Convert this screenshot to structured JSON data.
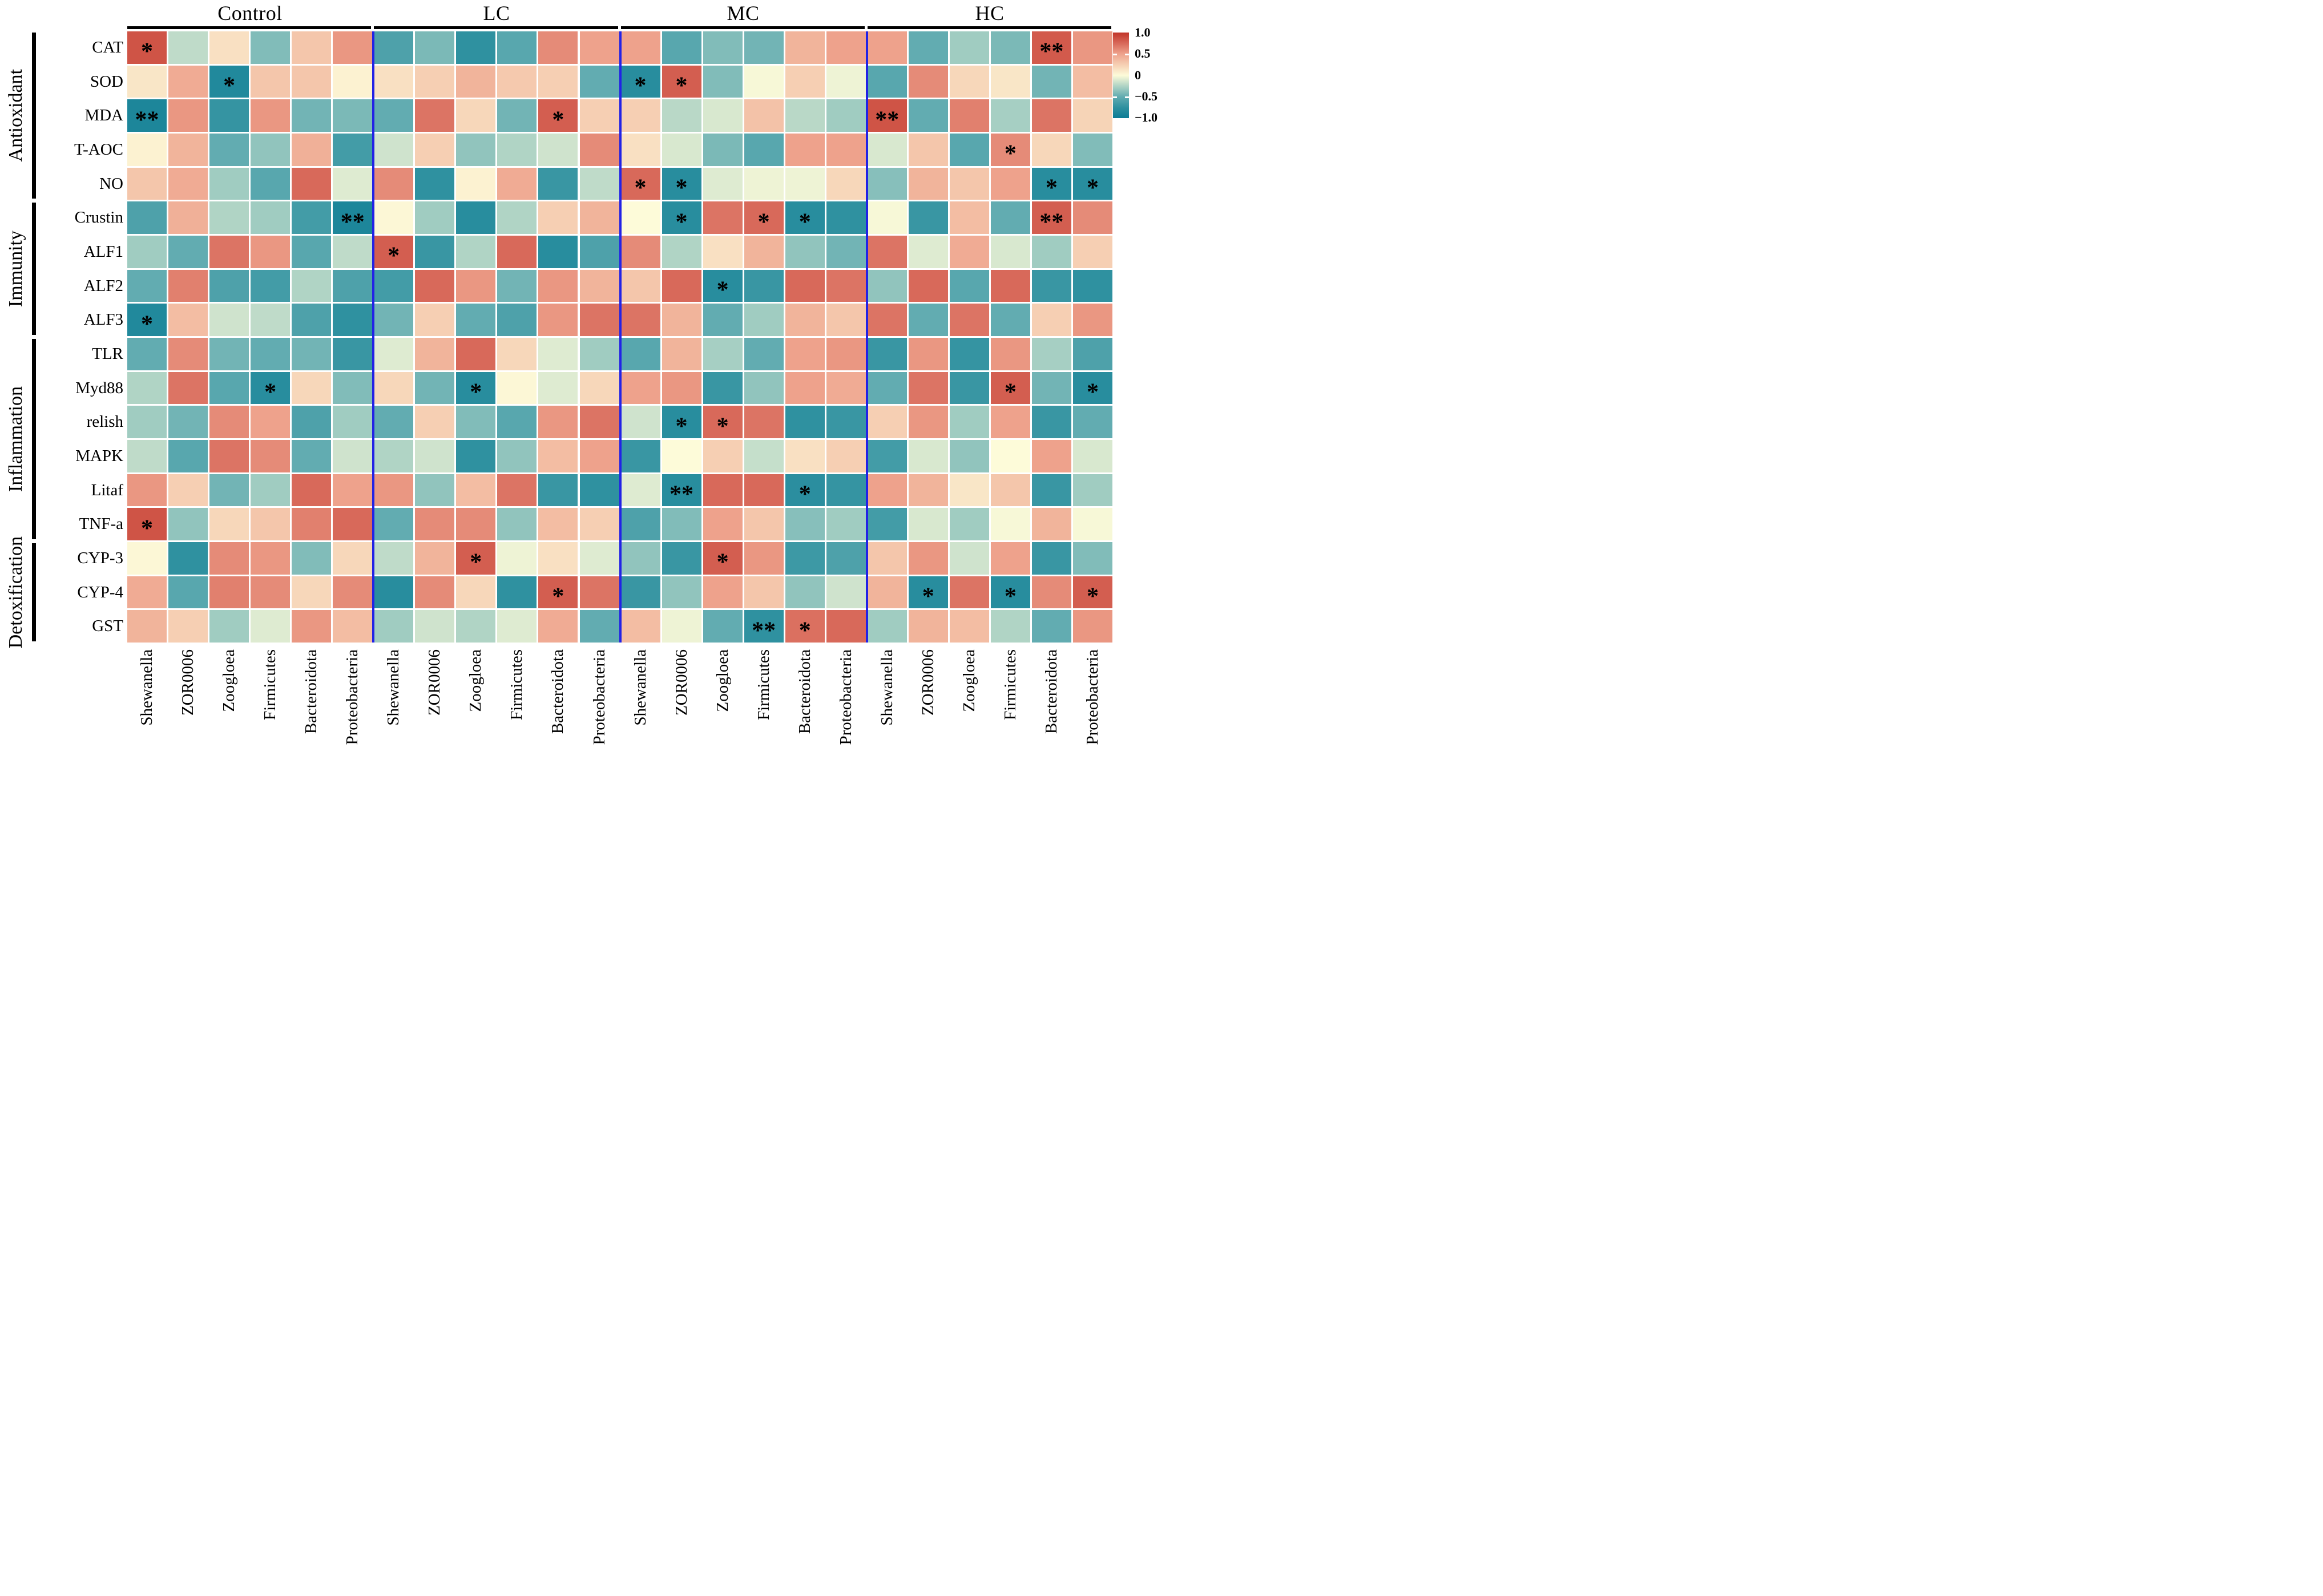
{
  "chart_data": {
    "type": "heatmap",
    "description": "Correlation heatmap between gut microbiota taxa and shrimp physiological gene/enzyme indices across four dietary groups",
    "groups": [
      "Control",
      "LC",
      "MC",
      "HC"
    ],
    "columns": [
      "Shewanella",
      "ZOR0006",
      "Zoogloea",
      "Firmicutes",
      "Bacteroidota",
      "Proteobacteria"
    ],
    "rows": [
      "CAT",
      "SOD",
      "MDA",
      "T-AOC",
      "NO",
      "Crustin",
      "ALF1",
      "ALF2",
      "ALF3",
      "TLR",
      "Myd88",
      "relish",
      "MAPK",
      "Litaf",
      "TNF-a",
      "CYP-3",
      "CYP-4",
      "GST"
    ],
    "row_categories": [
      {
        "label": "Antioxidant",
        "rows": [
          "CAT",
          "SOD",
          "MDA",
          "T-AOC",
          "NO"
        ]
      },
      {
        "label": "Immunity",
        "rows": [
          "Crustin",
          "ALF1",
          "ALF2",
          "ALF3"
        ]
      },
      {
        "label": "Inflammation",
        "rows": [
          "TLR",
          "Myd88",
          "relish",
          "MAPK",
          "Litaf",
          "TNF-a"
        ]
      },
      {
        "label": "Detoxification",
        "rows": [
          "CYP-3",
          "CYP-4",
          "GST"
        ]
      }
    ],
    "values": {
      "Control": [
        [
          0.85,
          -0.2,
          0.15,
          -0.4,
          0.3,
          0.55
        ],
        [
          0.12,
          0.45,
          -0.85,
          0.3,
          0.3,
          0.05
        ],
        [
          -0.88,
          0.55,
          -0.72,
          0.55,
          -0.45,
          -0.42
        ],
        [
          0.05,
          0.4,
          -0.5,
          -0.35,
          0.42,
          -0.65
        ],
        [
          0.3,
          0.45,
          -0.3,
          -0.55,
          0.75,
          -0.1
        ],
        [
          -0.6,
          0.42,
          -0.25,
          -0.3,
          -0.65,
          -0.88
        ],
        [
          -0.3,
          -0.5,
          0.7,
          0.55,
          -0.55,
          -0.2
        ],
        [
          -0.5,
          0.65,
          -0.6,
          -0.65,
          -0.25,
          -0.6
        ],
        [
          -0.85,
          0.35,
          -0.15,
          -0.2,
          -0.6,
          -0.75
        ],
        [
          -0.5,
          0.6,
          -0.45,
          -0.5,
          -0.45,
          -0.7
        ],
        [
          -0.25,
          0.7,
          -0.55,
          -0.8,
          0.2,
          -0.4
        ],
        [
          -0.3,
          -0.45,
          0.6,
          0.5,
          -0.6,
          -0.3
        ],
        [
          -0.2,
          -0.55,
          0.7,
          0.6,
          -0.5,
          -0.15
        ],
        [
          0.55,
          0.25,
          -0.45,
          -0.3,
          0.75,
          0.5
        ],
        [
          0.85,
          -0.35,
          0.2,
          0.3,
          0.65,
          0.75
        ],
        [
          0.02,
          -0.75,
          0.6,
          0.55,
          -0.4,
          0.2
        ],
        [
          0.45,
          -0.55,
          0.65,
          0.6,
          0.2,
          0.6
        ],
        [
          0.4,
          0.25,
          -0.3,
          -0.1,
          0.55,
          0.35
        ]
      ],
      "LC": [
        [
          -0.6,
          -0.42,
          -0.75,
          -0.55,
          0.6,
          0.5
        ],
        [
          0.15,
          0.25,
          0.4,
          0.28,
          0.25,
          -0.5
        ],
        [
          -0.5,
          0.7,
          0.2,
          -0.45,
          0.8,
          0.25
        ],
        [
          -0.15,
          0.25,
          -0.35,
          -0.25,
          -0.15,
          0.6
        ],
        [
          0.6,
          -0.75,
          0.05,
          0.45,
          -0.7,
          -0.2
        ],
        [
          0.02,
          -0.3,
          -0.8,
          -0.25,
          0.25,
          0.4
        ],
        [
          0.8,
          -0.7,
          -0.25,
          0.75,
          -0.8,
          -0.6
        ],
        [
          -0.65,
          0.75,
          0.55,
          -0.45,
          0.55,
          0.4
        ],
        [
          -0.45,
          0.25,
          -0.5,
          -0.6,
          0.55,
          0.7
        ],
        [
          -0.1,
          0.4,
          0.75,
          0.2,
          -0.1,
          -0.3
        ],
        [
          0.2,
          -0.45,
          -0.8,
          0.02,
          -0.1,
          0.2
        ],
        [
          -0.5,
          0.25,
          -0.4,
          -0.55,
          0.55,
          0.7
        ],
        [
          -0.25,
          -0.15,
          -0.75,
          -0.35,
          0.35,
          0.5
        ],
        [
          0.55,
          -0.35,
          0.35,
          0.7,
          -0.7,
          -0.75
        ],
        [
          -0.5,
          0.6,
          0.6,
          -0.35,
          0.35,
          0.25
        ],
        [
          -0.2,
          0.4,
          0.8,
          -0.05,
          0.15,
          -0.1
        ],
        [
          -0.8,
          0.6,
          0.2,
          -0.75,
          0.8,
          0.7
        ],
        [
          -0.3,
          -0.15,
          -0.25,
          -0.1,
          0.45,
          -0.5
        ]
      ],
      "MC": [
        [
          0.5,
          -0.55,
          -0.4,
          -0.45,
          0.4,
          0.5
        ],
        [
          -0.8,
          0.8,
          -0.4,
          -0.02,
          0.25,
          -0.05
        ],
        [
          0.25,
          -0.22,
          -0.12,
          0.32,
          -0.22,
          -0.3
        ],
        [
          0.15,
          -0.12,
          -0.42,
          -0.55,
          0.5,
          0.5
        ],
        [
          0.75,
          -0.8,
          -0.1,
          -0.05,
          -0.05,
          0.2
        ],
        [
          0.0,
          -0.8,
          0.7,
          0.75,
          -0.8,
          -0.75
        ],
        [
          0.6,
          -0.25,
          0.15,
          0.4,
          -0.35,
          -0.45
        ],
        [
          0.3,
          0.75,
          -0.8,
          -0.7,
          0.75,
          0.7
        ],
        [
          0.7,
          0.4,
          -0.5,
          -0.3,
          0.4,
          0.3
        ],
        [
          -0.55,
          0.4,
          -0.28,
          -0.5,
          0.5,
          0.55
        ],
        [
          0.5,
          0.55,
          -0.7,
          -0.35,
          0.5,
          0.45
        ],
        [
          -0.15,
          -0.8,
          0.75,
          0.7,
          -0.75,
          -0.7
        ],
        [
          -0.7,
          0.0,
          0.25,
          -0.18,
          0.15,
          0.25
        ],
        [
          -0.1,
          -0.8,
          0.75,
          0.75,
          -0.78,
          -0.72
        ],
        [
          -0.6,
          -0.4,
          0.5,
          0.3,
          -0.38,
          -0.3
        ],
        [
          -0.35,
          -0.7,
          0.8,
          0.55,
          -0.68,
          -0.6
        ],
        [
          -0.7,
          -0.35,
          0.5,
          0.3,
          -0.35,
          -0.15
        ],
        [
          0.35,
          -0.05,
          -0.5,
          -0.75,
          0.72,
          0.75
        ]
      ],
      "HC": [
        [
          0.5,
          -0.5,
          -0.3,
          -0.42,
          0.82,
          0.55
        ],
        [
          -0.55,
          0.6,
          0.2,
          0.12,
          -0.45,
          0.35
        ],
        [
          0.85,
          -0.5,
          0.65,
          -0.28,
          0.7,
          0.22
        ],
        [
          -0.12,
          0.3,
          -0.55,
          0.6,
          0.2,
          -0.4
        ],
        [
          -0.38,
          0.4,
          0.3,
          0.5,
          -0.8,
          -0.8
        ],
        [
          -0.02,
          -0.7,
          0.35,
          -0.5,
          0.8,
          0.6
        ],
        [
          0.7,
          -0.1,
          0.45,
          -0.12,
          -0.3,
          0.25
        ],
        [
          -0.35,
          0.75,
          -0.55,
          0.75,
          -0.7,
          -0.75
        ],
        [
          0.7,
          -0.5,
          0.7,
          -0.5,
          0.25,
          0.55
        ],
        [
          -0.7,
          0.55,
          -0.72,
          0.55,
          -0.28,
          -0.6
        ],
        [
          -0.5,
          0.7,
          -0.7,
          0.8,
          -0.45,
          -0.8
        ],
        [
          0.25,
          0.55,
          -0.3,
          0.5,
          -0.7,
          -0.5
        ],
        [
          -0.65,
          -0.12,
          -0.35,
          0.0,
          0.5,
          -0.12
        ],
        [
          0.5,
          0.4,
          0.12,
          0.3,
          -0.7,
          -0.3
        ],
        [
          -0.65,
          -0.12,
          -0.3,
          -0.02,
          0.4,
          -0.02
        ],
        [
          0.3,
          0.55,
          -0.15,
          0.5,
          -0.7,
          -0.4
        ],
        [
          0.4,
          -0.8,
          0.7,
          -0.8,
          0.6,
          0.8
        ],
        [
          -0.3,
          0.4,
          0.35,
          -0.25,
          -0.5,
          0.55
        ]
      ]
    },
    "stars": {
      "Control": [
        [
          "*",
          "",
          "",
          "",
          "",
          ""
        ],
        [
          "",
          "",
          "*",
          "",
          "",
          ""
        ],
        [
          "**",
          "",
          "",
          "",
          "",
          ""
        ],
        [
          "",
          "",
          "",
          "",
          "",
          ""
        ],
        [
          "",
          "",
          "",
          "",
          "",
          ""
        ],
        [
          "",
          "",
          "",
          "",
          "",
          "**"
        ],
        [
          "",
          "",
          "",
          "",
          "",
          ""
        ],
        [
          "",
          "",
          "",
          "",
          "",
          ""
        ],
        [
          "*",
          "",
          "",
          "",
          "",
          ""
        ],
        [
          "",
          "",
          "",
          "",
          "",
          ""
        ],
        [
          "",
          "",
          "",
          "*",
          "",
          ""
        ],
        [
          "",
          "",
          "",
          "",
          "",
          ""
        ],
        [
          "",
          "",
          "",
          "",
          "",
          ""
        ],
        [
          "",
          "",
          "",
          "",
          "",
          ""
        ],
        [
          "*",
          "",
          "",
          "",
          "",
          ""
        ],
        [
          "",
          "",
          "",
          "",
          "",
          ""
        ],
        [
          "",
          "",
          "",
          "",
          "",
          ""
        ],
        [
          "",
          "",
          "",
          "",
          "",
          ""
        ]
      ],
      "LC": [
        [
          "",
          "",
          "",
          "",
          "",
          ""
        ],
        [
          "",
          "",
          "",
          "",
          "",
          ""
        ],
        [
          "",
          "",
          "",
          "",
          "*",
          ""
        ],
        [
          "",
          "",
          "",
          "",
          "",
          ""
        ],
        [
          "",
          "",
          "",
          "",
          "",
          ""
        ],
        [
          "",
          "",
          "",
          "",
          "",
          ""
        ],
        [
          "*",
          "",
          "",
          "",
          "",
          ""
        ],
        [
          "",
          "",
          "",
          "",
          "",
          ""
        ],
        [
          "",
          "",
          "",
          "",
          "",
          ""
        ],
        [
          "",
          "",
          "",
          "",
          "",
          ""
        ],
        [
          "",
          "",
          "*",
          "",
          "",
          ""
        ],
        [
          "",
          "",
          "",
          "",
          "",
          ""
        ],
        [
          "",
          "",
          "",
          "",
          "",
          ""
        ],
        [
          "",
          "",
          "",
          "",
          "",
          ""
        ],
        [
          "",
          "",
          "",
          "",
          "",
          ""
        ],
        [
          "",
          "",
          "*",
          "",
          "",
          ""
        ],
        [
          "",
          "",
          "",
          "",
          "*",
          ""
        ],
        [
          "",
          "",
          "",
          "",
          "",
          ""
        ]
      ],
      "MC": [
        [
          "",
          "",
          "",
          "",
          "",
          ""
        ],
        [
          "*",
          "*",
          "",
          "",
          "",
          ""
        ],
        [
          "",
          "",
          "",
          "",
          "",
          ""
        ],
        [
          "",
          "",
          "",
          "",
          "",
          ""
        ],
        [
          "*",
          "*",
          "",
          "",
          "",
          ""
        ],
        [
          "",
          "*",
          "",
          "*",
          "*",
          ""
        ],
        [
          "",
          "",
          "",
          "",
          "",
          ""
        ],
        [
          "",
          "",
          "*",
          "",
          "",
          ""
        ],
        [
          "",
          "",
          "",
          "",
          "",
          ""
        ],
        [
          "",
          "",
          "",
          "",
          "",
          ""
        ],
        [
          "",
          "",
          "",
          "",
          "",
          ""
        ],
        [
          "",
          "*",
          "*",
          "",
          "",
          ""
        ],
        [
          "",
          "",
          "",
          "",
          "",
          ""
        ],
        [
          "",
          "**",
          "",
          "",
          "*",
          ""
        ],
        [
          "",
          "",
          "",
          "",
          "",
          ""
        ],
        [
          "",
          "",
          "*",
          "",
          "",
          ""
        ],
        [
          "",
          "",
          "",
          "",
          "",
          ""
        ],
        [
          "",
          "",
          "",
          "**",
          "*",
          ""
        ]
      ],
      "HC": [
        [
          "",
          "",
          "",
          "",
          "**",
          ""
        ],
        [
          "",
          "",
          "",
          "",
          "",
          ""
        ],
        [
          "**",
          "",
          "",
          "",
          "",
          ""
        ],
        [
          "",
          "",
          "",
          "*",
          "",
          ""
        ],
        [
          "",
          "",
          "",
          "",
          "*",
          "*"
        ],
        [
          "",
          "",
          "",
          "",
          "**",
          ""
        ],
        [
          "",
          "",
          "",
          "",
          "",
          ""
        ],
        [
          "",
          "",
          "",
          "",
          "",
          ""
        ],
        [
          "",
          "",
          "",
          "",
          "",
          ""
        ],
        [
          "",
          "",
          "",
          "",
          "",
          ""
        ],
        [
          "",
          "",
          "",
          "*",
          "",
          "*"
        ],
        [
          "",
          "",
          "",
          "",
          "",
          ""
        ],
        [
          "",
          "",
          "",
          "",
          "",
          ""
        ],
        [
          "",
          "",
          "",
          "",
          "",
          ""
        ],
        [
          "",
          "",
          "",
          "",
          "",
          ""
        ],
        [
          "",
          "",
          "",
          "",
          "",
          ""
        ],
        [
          "",
          "*",
          "",
          "*",
          "",
          "*"
        ],
        [
          "",
          "",
          "",
          "",
          "",
          ""
        ]
      ]
    },
    "colorscale": {
      "min": -1,
      "max": 1,
      "ticks": [
        "1.0",
        "0.5",
        "0",
        "−0.5",
        "−1.0"
      ],
      "stops": [
        {
          "v": -1.0,
          "c": "#0c7c95"
        },
        {
          "v": -0.75,
          "c": "#2f91a0"
        },
        {
          "v": -0.5,
          "c": "#62acb1"
        },
        {
          "v": 0.0,
          "c": "#fdfbd9"
        },
        {
          "v": 0.5,
          "c": "#eea28c"
        },
        {
          "v": 0.75,
          "c": "#d8695a"
        },
        {
          "v": 1.0,
          "c": "#c13429"
        }
      ]
    },
    "layout": {
      "separator_color": "#2222e6",
      "bracket_color": "#000000",
      "grid_gap_color": "#ffffff",
      "legend_position": "top-right",
      "significance_marks": [
        "*",
        "**"
      ]
    }
  }
}
